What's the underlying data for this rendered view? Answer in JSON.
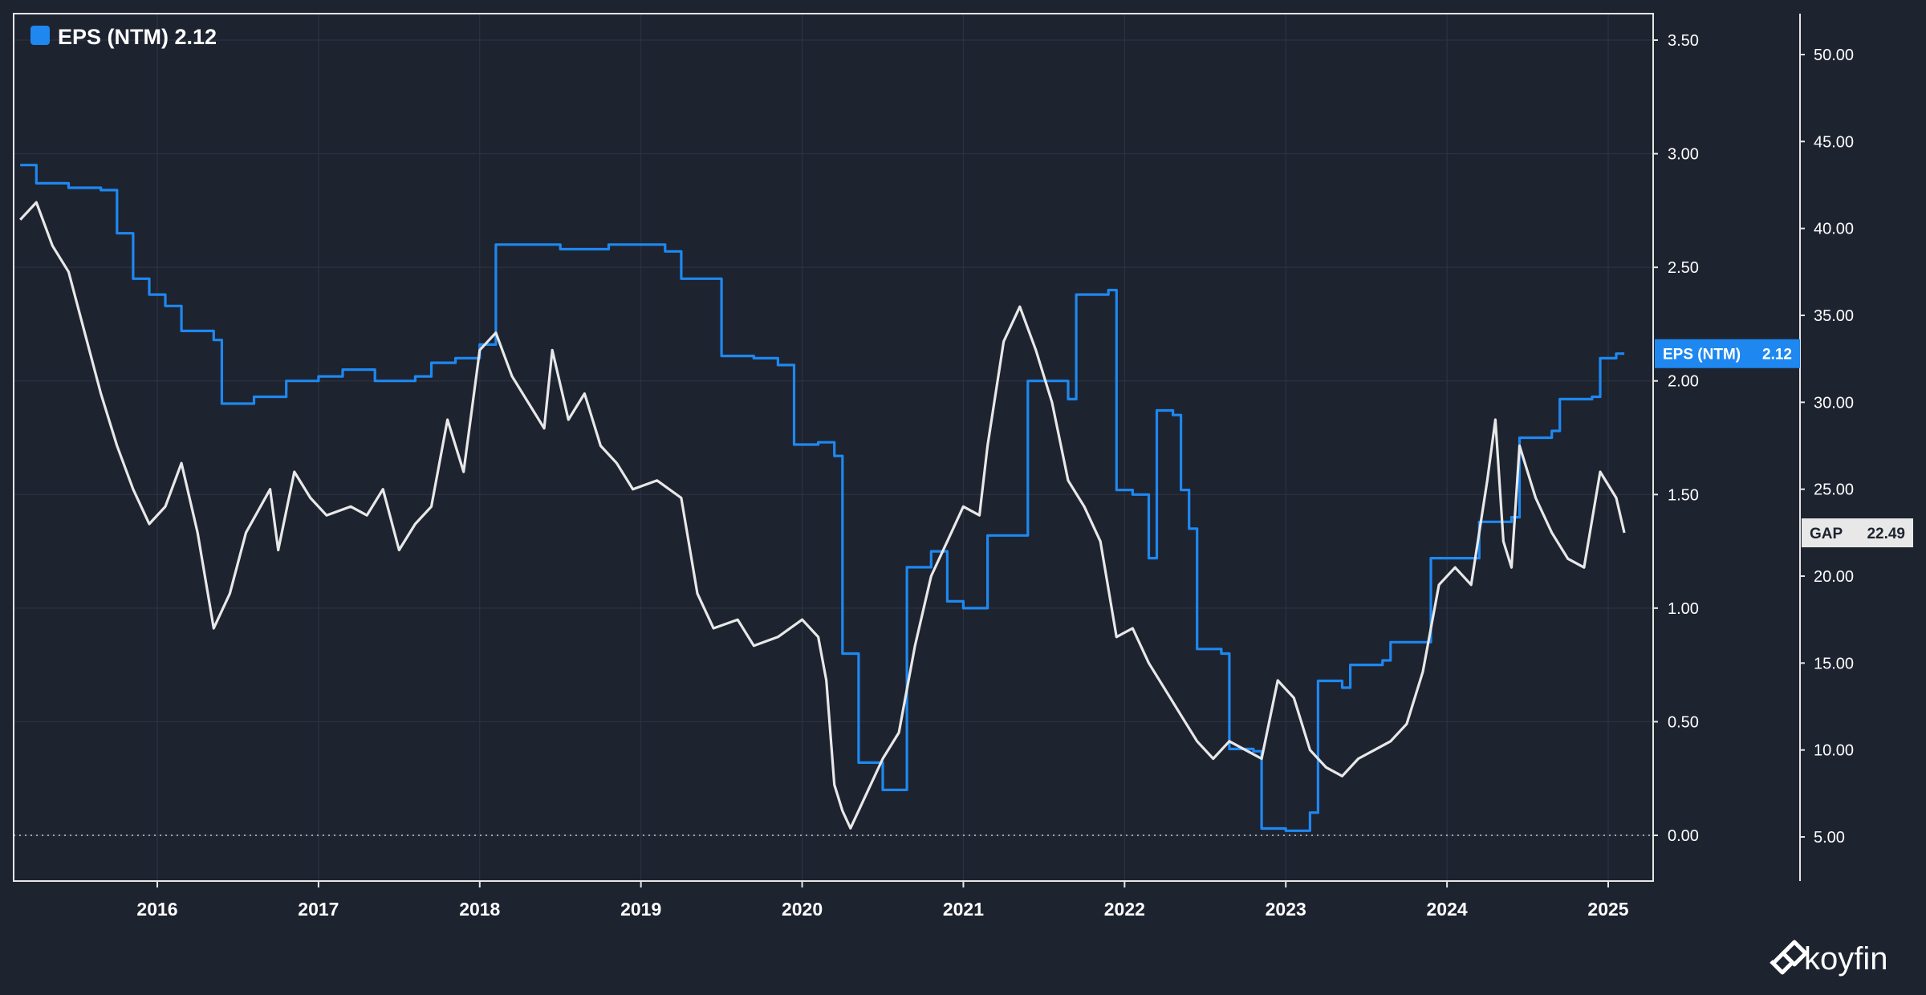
{
  "chart_data": {
    "type": "line",
    "title": "",
    "legend": {
      "placement": "top-left",
      "label": "EPS (NTM) 2.12",
      "color": "#1e88f0"
    },
    "x_ticks": [
      "2016",
      "2017",
      "2018",
      "2019",
      "2020",
      "2021",
      "2022",
      "2023",
      "2024",
      "2025"
    ],
    "y_left": {
      "ticks": [
        "0.00",
        "0.50",
        "1.00",
        "1.50",
        "2.00",
        "2.50",
        "3.00",
        "3.50"
      ],
      "range": [
        0,
        3.6
      ]
    },
    "y_right": {
      "ticks": [
        "5.00",
        "10.00",
        "15.00",
        "20.00",
        "25.00",
        "30.00",
        "35.00",
        "40.00",
        "45.00",
        "50.00"
      ],
      "range": [
        2.0,
        52.0
      ]
    },
    "tags": {
      "eps": {
        "name": "EPS (NTM)",
        "value": "2.12",
        "color": "#1e88f0"
      },
      "gap": {
        "name": "GAP",
        "value": "22.49",
        "color": "#e8e8e8"
      }
    },
    "series": [
      {
        "name": "EPS (NTM)",
        "axis": "left",
        "color": "#1e88f0",
        "step": true,
        "points": [
          [
            2015.15,
            2.95
          ],
          [
            2015.25,
            2.87
          ],
          [
            2015.45,
            2.85
          ],
          [
            2015.65,
            2.84
          ],
          [
            2015.75,
            2.65
          ],
          [
            2015.85,
            2.45
          ],
          [
            2015.95,
            2.38
          ],
          [
            2016.05,
            2.33
          ],
          [
            2016.15,
            2.22
          ],
          [
            2016.35,
            2.18
          ],
          [
            2016.4,
            1.9
          ],
          [
            2016.6,
            1.93
          ],
          [
            2016.8,
            2.0
          ],
          [
            2017.0,
            2.02
          ],
          [
            2017.15,
            2.05
          ],
          [
            2017.35,
            2.0
          ],
          [
            2017.6,
            2.02
          ],
          [
            2017.7,
            2.08
          ],
          [
            2017.85,
            2.1
          ],
          [
            2018.0,
            2.16
          ],
          [
            2018.1,
            2.6
          ],
          [
            2018.3,
            2.6
          ],
          [
            2018.5,
            2.58
          ],
          [
            2018.8,
            2.6
          ],
          [
            2019.15,
            2.57
          ],
          [
            2019.25,
            2.45
          ],
          [
            2019.4,
            2.45
          ],
          [
            2019.5,
            2.11
          ],
          [
            2019.7,
            2.1
          ],
          [
            2019.85,
            2.07
          ],
          [
            2019.95,
            1.72
          ],
          [
            2020.1,
            1.73
          ],
          [
            2020.2,
            1.67
          ],
          [
            2020.25,
            0.8
          ],
          [
            2020.35,
            0.32
          ],
          [
            2020.5,
            0.2
          ],
          [
            2020.6,
            0.2
          ],
          [
            2020.65,
            1.18
          ],
          [
            2020.8,
            1.25
          ],
          [
            2020.9,
            1.03
          ],
          [
            2021.0,
            1.0
          ],
          [
            2021.15,
            1.32
          ],
          [
            2021.35,
            1.32
          ],
          [
            2021.4,
            2.0
          ],
          [
            2021.55,
            2.0
          ],
          [
            2021.65,
            1.92
          ],
          [
            2021.7,
            2.38
          ],
          [
            2021.9,
            2.4
          ],
          [
            2021.95,
            1.52
          ],
          [
            2022.05,
            1.5
          ],
          [
            2022.15,
            1.22
          ],
          [
            2022.2,
            1.87
          ],
          [
            2022.3,
            1.85
          ],
          [
            2022.35,
            1.52
          ],
          [
            2022.4,
            1.35
          ],
          [
            2022.45,
            0.82
          ],
          [
            2022.6,
            0.8
          ],
          [
            2022.65,
            0.38
          ],
          [
            2022.8,
            0.37
          ],
          [
            2022.85,
            0.03
          ],
          [
            2023.0,
            0.02
          ],
          [
            2023.15,
            0.1
          ],
          [
            2023.2,
            0.68
          ],
          [
            2023.35,
            0.65
          ],
          [
            2023.4,
            0.75
          ],
          [
            2023.6,
            0.77
          ],
          [
            2023.65,
            0.85
          ],
          [
            2023.85,
            0.85
          ],
          [
            2023.9,
            1.22
          ],
          [
            2024.2,
            1.38
          ],
          [
            2024.4,
            1.4
          ],
          [
            2024.45,
            1.75
          ],
          [
            2024.65,
            1.78
          ],
          [
            2024.7,
            1.92
          ],
          [
            2024.9,
            1.93
          ],
          [
            2024.95,
            2.1
          ],
          [
            2025.05,
            2.12
          ],
          [
            2025.1,
            2.12
          ]
        ]
      },
      {
        "name": "GAP",
        "axis": "right",
        "color": "#e8e8e8",
        "step": false,
        "points": [
          [
            2015.15,
            40.5
          ],
          [
            2015.25,
            41.5
          ],
          [
            2015.35,
            39.0
          ],
          [
            2015.45,
            37.5
          ],
          [
            2015.55,
            34.0
          ],
          [
            2015.65,
            30.5
          ],
          [
            2015.75,
            27.5
          ],
          [
            2015.85,
            25.0
          ],
          [
            2015.95,
            23.0
          ],
          [
            2016.05,
            24.0
          ],
          [
            2016.15,
            26.5
          ],
          [
            2016.25,
            22.5
          ],
          [
            2016.35,
            17.0
          ],
          [
            2016.45,
            19.0
          ],
          [
            2016.55,
            22.5
          ],
          [
            2016.7,
            25.0
          ],
          [
            2016.75,
            21.5
          ],
          [
            2016.85,
            26.0
          ],
          [
            2016.95,
            24.5
          ],
          [
            2017.05,
            23.5
          ],
          [
            2017.2,
            24.0
          ],
          [
            2017.3,
            23.5
          ],
          [
            2017.4,
            25.0
          ],
          [
            2017.5,
            21.5
          ],
          [
            2017.6,
            23.0
          ],
          [
            2017.7,
            24.0
          ],
          [
            2017.8,
            29.0
          ],
          [
            2017.9,
            26.0
          ],
          [
            2018.0,
            33.0
          ],
          [
            2018.1,
            34.0
          ],
          [
            2018.2,
            31.5
          ],
          [
            2018.3,
            30.0
          ],
          [
            2018.4,
            28.5
          ],
          [
            2018.45,
            33.0
          ],
          [
            2018.55,
            29.0
          ],
          [
            2018.65,
            30.5
          ],
          [
            2018.75,
            27.5
          ],
          [
            2018.85,
            26.5
          ],
          [
            2018.95,
            25.0
          ],
          [
            2019.1,
            25.5
          ],
          [
            2019.25,
            24.5
          ],
          [
            2019.35,
            19.0
          ],
          [
            2019.45,
            17.0
          ],
          [
            2019.6,
            17.5
          ],
          [
            2019.7,
            16.0
          ],
          [
            2019.85,
            16.5
          ],
          [
            2020.0,
            17.5
          ],
          [
            2020.1,
            16.5
          ],
          [
            2020.15,
            14.0
          ],
          [
            2020.2,
            8.0
          ],
          [
            2020.25,
            6.5
          ],
          [
            2020.3,
            5.5
          ],
          [
            2020.4,
            7.5
          ],
          [
            2020.5,
            9.5
          ],
          [
            2020.6,
            11.0
          ],
          [
            2020.7,
            16.0
          ],
          [
            2020.8,
            20.0
          ],
          [
            2020.9,
            22.0
          ],
          [
            2021.0,
            24.0
          ],
          [
            2021.1,
            23.5
          ],
          [
            2021.15,
            27.5
          ],
          [
            2021.25,
            33.5
          ],
          [
            2021.35,
            35.5
          ],
          [
            2021.45,
            33.0
          ],
          [
            2021.55,
            30.0
          ],
          [
            2021.65,
            25.5
          ],
          [
            2021.75,
            24.0
          ],
          [
            2021.85,
            22.0
          ],
          [
            2021.95,
            16.5
          ],
          [
            2022.05,
            17.0
          ],
          [
            2022.15,
            15.0
          ],
          [
            2022.25,
            13.5
          ],
          [
            2022.35,
            12.0
          ],
          [
            2022.45,
            10.5
          ],
          [
            2022.55,
            9.5
          ],
          [
            2022.65,
            10.5
          ],
          [
            2022.75,
            10.0
          ],
          [
            2022.85,
            9.5
          ],
          [
            2022.95,
            14.0
          ],
          [
            2023.05,
            13.0
          ],
          [
            2023.15,
            10.0
          ],
          [
            2023.25,
            9.0
          ],
          [
            2023.35,
            8.5
          ],
          [
            2023.45,
            9.5
          ],
          [
            2023.55,
            10.0
          ],
          [
            2023.65,
            10.5
          ],
          [
            2023.75,
            11.5
          ],
          [
            2023.85,
            14.5
          ],
          [
            2023.95,
            19.5
          ],
          [
            2024.05,
            20.5
          ],
          [
            2024.15,
            19.5
          ],
          [
            2024.25,
            25.5
          ],
          [
            2024.3,
            29.0
          ],
          [
            2024.35,
            22.0
          ],
          [
            2024.4,
            20.5
          ],
          [
            2024.45,
            27.5
          ],
          [
            2024.55,
            24.5
          ],
          [
            2024.65,
            22.5
          ],
          [
            2024.75,
            21.0
          ],
          [
            2024.85,
            20.5
          ],
          [
            2024.95,
            26.0
          ],
          [
            2025.05,
            24.5
          ],
          [
            2025.1,
            22.49
          ]
        ]
      }
    ]
  },
  "brand": {
    "name": "koyfin"
  }
}
